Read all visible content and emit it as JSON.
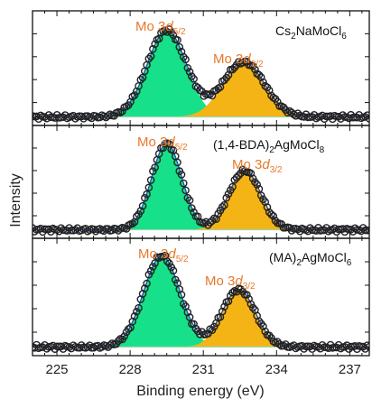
{
  "chart_data": {
    "type": "line",
    "xlabel": "Binding energy (eV)",
    "ylabel": "Intensity",
    "xlim": [
      224.0,
      237.8
    ],
    "xticks": [
      225,
      228,
      231,
      234,
      237
    ],
    "colors": {
      "peak_5_2": "#17e08a",
      "peak_3_2": "#f5b416",
      "label": "#e8782a",
      "markers": "#222222",
      "envelope": "#1f4cc2"
    },
    "panels": [
      {
        "title": "Cs2NaMoCl6",
        "title_parts": [
          "Cs",
          "2",
          "NaMoCl",
          "6",
          ""
        ],
        "label_5_2": "Mo 3d5/2",
        "label_3_2": "Mo 3d3/2",
        "peaks": [
          {
            "name": "Mo 3d5/2",
            "center": 229.5,
            "width": 0.8,
            "height": 0.82,
            "color": "peak_5_2"
          },
          {
            "name": "Mo 3d3/2",
            "center": 232.65,
            "width": 0.85,
            "height": 0.52,
            "color": "peak_3_2"
          }
        ],
        "baseline": 0.03
      },
      {
        "title": "(1,4-BDA)2AgMoCl8",
        "title_parts": [
          "(1,4-BDA)",
          "2",
          "AgMoCl",
          "8",
          ""
        ],
        "label_5_2": "Mo 3d5/2",
        "label_3_2": "Mo 3d3/2",
        "peaks": [
          {
            "name": "Mo 3d5/2",
            "center": 229.5,
            "width": 0.62,
            "height": 0.83,
            "color": "peak_5_2"
          },
          {
            "name": "Mo 3d3/2",
            "center": 232.7,
            "width": 0.66,
            "height": 0.57,
            "color": "peak_3_2"
          }
        ],
        "baseline": 0.03
      },
      {
        "title": "(MA)2AgMoCl6",
        "title_parts": [
          "(MA)",
          "2",
          "AgMoCl",
          "6",
          ""
        ],
        "label_5_2": "Mo 3d5/2",
        "label_3_2": "Mo 3d3/2",
        "peaks": [
          {
            "name": "Mo 3d5/2",
            "center": 229.3,
            "width": 0.75,
            "height": 0.84,
            "color": "peak_5_2"
          },
          {
            "name": "Mo 3d3/2",
            "center": 232.45,
            "width": 0.68,
            "height": 0.53,
            "color": "peak_3_2"
          }
        ],
        "baseline": 0.03
      }
    ]
  }
}
